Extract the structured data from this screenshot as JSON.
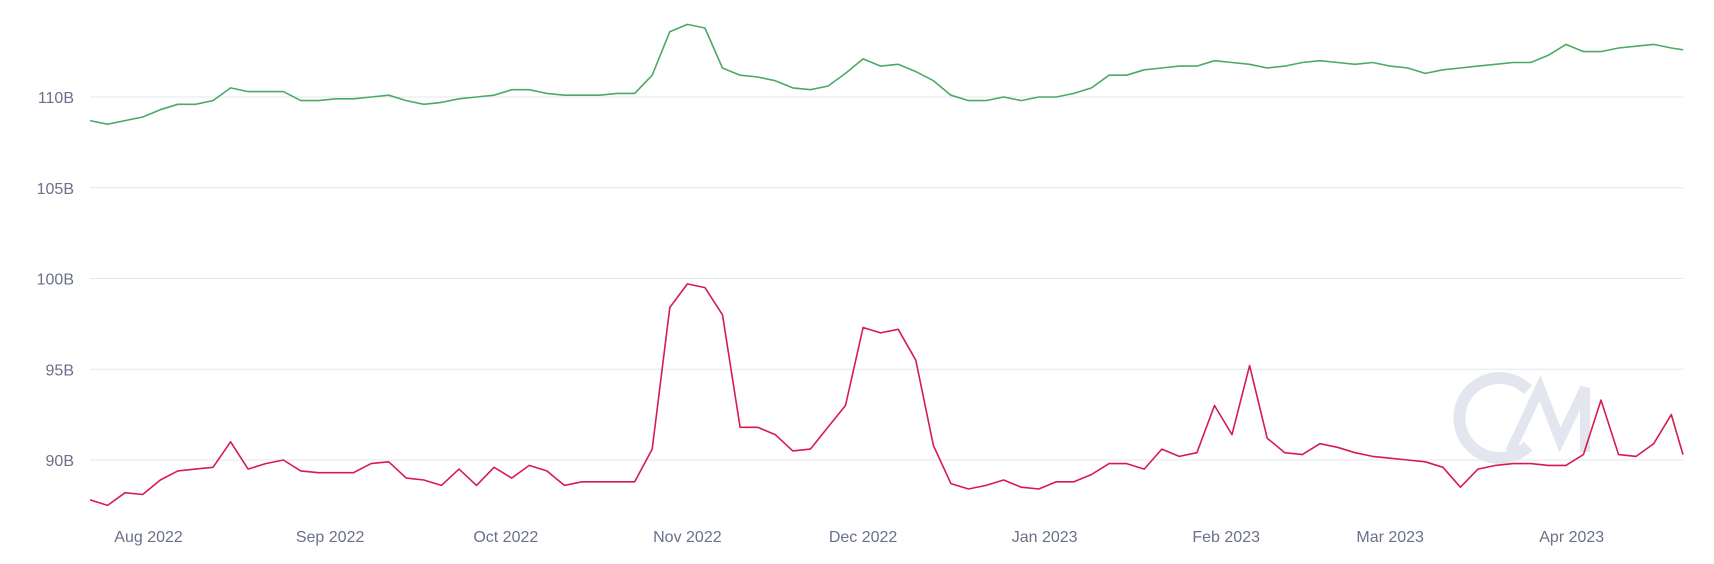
{
  "chart_data": {
    "type": "line",
    "title": "",
    "xlabel": "",
    "ylabel": "",
    "ylim": [
      87,
      115
    ],
    "y_ticks": [
      "90B",
      "95B",
      "100B",
      "105B",
      "110B"
    ],
    "y_tick_values": [
      90,
      95,
      100,
      105,
      110
    ],
    "x_ticks": [
      "Aug 2022",
      "Sep 2022",
      "Oct 2022",
      "Nov 2022",
      "Dec 2022",
      "Jan 2023",
      "Feb 2023",
      "Mar 2023",
      "Apr 2023"
    ],
    "x_tick_dates": [
      "2022-08-01",
      "2022-09-01",
      "2022-10-01",
      "2022-11-01",
      "2022-12-01",
      "2023-01-01",
      "2023-02-01",
      "2023-03-01",
      "2023-04-01"
    ],
    "xlim": [
      "2022-07-22",
      "2023-04-20"
    ],
    "grid": "horizontal",
    "legend": "none",
    "x": [
      "2022-07-22",
      "2022-07-25",
      "2022-07-28",
      "2022-07-31",
      "2022-08-03",
      "2022-08-06",
      "2022-08-09",
      "2022-08-12",
      "2022-08-15",
      "2022-08-18",
      "2022-08-21",
      "2022-08-24",
      "2022-08-27",
      "2022-08-30",
      "2022-09-02",
      "2022-09-05",
      "2022-09-08",
      "2022-09-11",
      "2022-09-14",
      "2022-09-17",
      "2022-09-20",
      "2022-09-23",
      "2022-09-26",
      "2022-09-29",
      "2022-10-02",
      "2022-10-05",
      "2022-10-08",
      "2022-10-11",
      "2022-10-14",
      "2022-10-17",
      "2022-10-20",
      "2022-10-23",
      "2022-10-26",
      "2022-10-29",
      "2022-11-01",
      "2022-11-04",
      "2022-11-07",
      "2022-11-10",
      "2022-11-13",
      "2022-11-16",
      "2022-11-19",
      "2022-11-22",
      "2022-11-25",
      "2022-11-28",
      "2022-12-01",
      "2022-12-04",
      "2022-12-07",
      "2022-12-10",
      "2022-12-13",
      "2022-12-16",
      "2022-12-19",
      "2022-12-22",
      "2022-12-25",
      "2022-12-28",
      "2022-12-31",
      "2023-01-03",
      "2023-01-06",
      "2023-01-09",
      "2023-01-12",
      "2023-01-15",
      "2023-01-18",
      "2023-01-21",
      "2023-01-24",
      "2023-01-27",
      "2023-01-30",
      "2023-02-02",
      "2023-02-05",
      "2023-02-08",
      "2023-02-11",
      "2023-02-14",
      "2023-02-17",
      "2023-02-20",
      "2023-02-23",
      "2023-02-26",
      "2023-03-01",
      "2023-03-04",
      "2023-03-07",
      "2023-03-10",
      "2023-03-13",
      "2023-03-16",
      "2023-03-19",
      "2023-03-22",
      "2023-03-25",
      "2023-03-28",
      "2023-03-31",
      "2023-04-03",
      "2023-04-06",
      "2023-04-09",
      "2023-04-12",
      "2023-04-15",
      "2023-04-18",
      "2023-04-20"
    ],
    "series": [
      {
        "color": "#4caa64",
        "values": [
          108.7,
          108.5,
          108.7,
          108.9,
          109.3,
          109.6,
          109.6,
          109.8,
          110.5,
          110.3,
          110.3,
          110.3,
          109.8,
          109.8,
          109.9,
          109.9,
          110.0,
          110.1,
          109.8,
          109.6,
          109.7,
          109.9,
          110.0,
          110.1,
          110.4,
          110.4,
          110.2,
          110.1,
          110.1,
          110.1,
          110.2,
          110.2,
          111.2,
          113.6,
          114.0,
          113.8,
          111.6,
          111.2,
          111.1,
          110.9,
          110.5,
          110.4,
          110.6,
          111.3,
          112.1,
          111.7,
          111.8,
          111.4,
          110.9,
          110.1,
          109.8,
          109.8,
          110.0,
          109.8,
          110.0,
          110.0,
          110.2,
          110.5,
          111.2,
          111.2,
          111.5,
          111.6,
          111.7,
          111.7,
          112.0,
          111.9,
          111.8,
          111.6,
          111.7,
          111.9,
          112.0,
          111.9,
          111.8,
          111.9,
          111.7,
          111.6,
          111.3,
          111.5,
          111.6,
          111.7,
          111.8,
          111.9,
          111.9,
          112.3,
          112.9,
          112.5,
          112.5,
          112.7,
          112.8,
          112.9,
          112.7,
          112.6
        ]
      },
      {
        "color": "#d81b4e",
        "values": [
          87.8,
          87.5,
          88.2,
          88.1,
          88.9,
          89.4,
          89.5,
          89.6,
          91.0,
          89.5,
          89.8,
          90.0,
          89.4,
          89.3,
          89.3,
          89.3,
          89.8,
          89.9,
          89.0,
          88.9,
          88.6,
          89.5,
          88.6,
          89.6,
          89.0,
          89.7,
          89.4,
          88.6,
          88.8,
          88.8,
          88.8,
          88.8,
          90.6,
          98.4,
          99.7,
          99.5,
          98.0,
          91.8,
          91.8,
          91.4,
          90.5,
          90.6,
          91.8,
          93.0,
          97.3,
          97.0,
          97.2,
          95.5,
          90.8,
          88.7,
          88.4,
          88.6,
          88.9,
          88.5,
          88.4,
          88.8,
          88.8,
          89.2,
          89.8,
          89.8,
          89.5,
          90.6,
          90.2,
          90.4,
          93.0,
          91.4,
          95.2,
          91.2,
          90.4,
          90.3,
          90.9,
          90.7,
          90.4,
          90.2,
          90.1,
          90.0,
          89.9,
          89.6,
          88.5,
          89.5,
          89.7,
          89.8,
          89.8,
          89.7,
          89.7,
          90.3,
          93.3,
          90.3,
          90.2,
          90.9,
          92.5,
          90.3
        ]
      }
    ],
    "gridline_color": "#e6e7ee",
    "tick_color": "#6b7089"
  },
  "watermark": {
    "text": "CM",
    "color": "#e3e6ee"
  }
}
